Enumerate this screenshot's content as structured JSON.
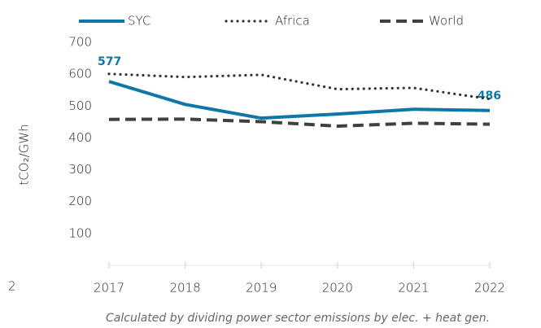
{
  "chart_data": {
    "type": "line",
    "y_label": "tCO₂/GWh",
    "note": "Calculated by dividing power sector emissions by elec. + heat gen.",
    "side_text": "2",
    "x": [
      "2017",
      "2018",
      "2019",
      "2020",
      "2021",
      "2022"
    ],
    "series": [
      {
        "name": "SYC",
        "color": "#0f77a8",
        "style": "solid",
        "values": [
          577,
          505,
          462,
          475,
          490,
          486
        ],
        "value_labels": [
          "577",
          null,
          null,
          null,
          null,
          "486"
        ]
      },
      {
        "name": "Africa",
        "color": "#333333",
        "style": "dotted",
        "values": [
          601,
          591,
          598,
          553,
          557,
          522
        ]
      },
      {
        "name": "World",
        "color": "#404040",
        "style": "dashed",
        "values": [
          458,
          459,
          451,
          437,
          446,
          443
        ]
      }
    ],
    "ylim": [
      0,
      700
    ],
    "yticks": [
      100,
      200,
      300,
      400,
      500,
      600,
      700
    ],
    "grid": false,
    "legend": "top"
  }
}
